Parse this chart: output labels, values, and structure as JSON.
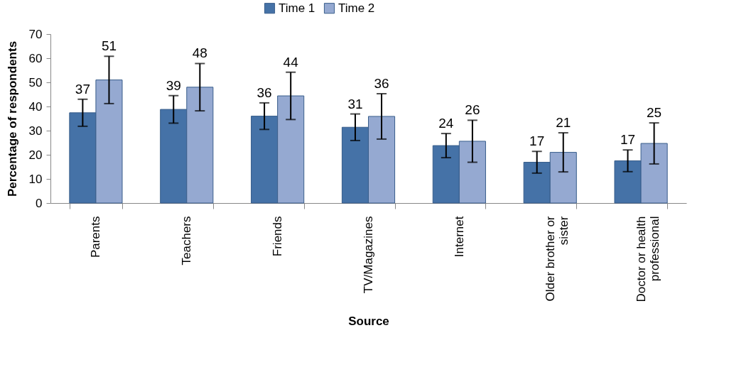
{
  "chart_data": {
    "type": "bar",
    "xlabel": "Source",
    "ylabel": "Percentage of respondents",
    "categories": [
      "Parents",
      "Teachers",
      "Friends",
      "TV/Magazines",
      "Internet",
      "Older brother or sister",
      "Doctor or health professional"
    ],
    "series": [
      {
        "name": "Time 1",
        "color": "#4572a7",
        "values": [
          37.4,
          38.8,
          36.0,
          31.4,
          23.8,
          16.9,
          17.5
        ],
        "errors": [
          5.6,
          5.7,
          5.5,
          5.5,
          5.0,
          4.5,
          4.5
        ],
        "value_labels": [
          "37",
          "39",
          "36",
          "31",
          "24",
          "17",
          "17"
        ]
      },
      {
        "name": "Time 2",
        "color": "#95a9d1",
        "values": [
          51.0,
          48.0,
          44.4,
          35.9,
          25.6,
          21.0,
          24.7
        ],
        "errors": [
          9.8,
          9.8,
          9.8,
          9.4,
          8.7,
          8.1,
          8.5
        ],
        "value_labels": [
          "51",
          "48",
          "44",
          "36",
          "26",
          "21",
          "25"
        ]
      }
    ],
    "ylim": [
      0,
      70
    ],
    "yticks": [
      0,
      10,
      20,
      30,
      40,
      50,
      60,
      70
    ],
    "grid": false,
    "legend": "top"
  }
}
